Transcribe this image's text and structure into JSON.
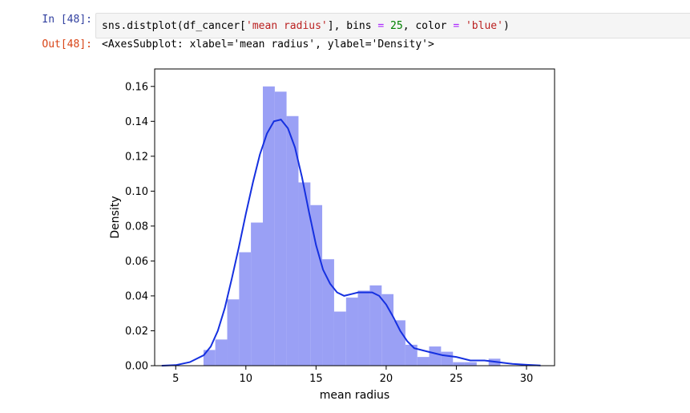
{
  "cell": {
    "in_prompt": "In [48]:",
    "out_prompt": "Out[48]:",
    "code": {
      "fn": "sns.distplot(df_cancer[",
      "arg_str": "'mean radius'",
      "sep1": "], bins ",
      "eq1": "=",
      "sp1": " ",
      "bins": "25",
      "sep2": ", color ",
      "eq2": "=",
      "sp2": " ",
      "color_str": "'blue'",
      "close": ")"
    },
    "output_text": "<AxesSubplot: xlabel='mean radius', ylabel='Density'>"
  },
  "colors": {
    "bar_fill": "#9aa0f5",
    "kde_line": "#1530e0",
    "axes": "#000000"
  },
  "chart_data": {
    "type": "bar",
    "title": "",
    "xlabel": "mean radius",
    "ylabel": "Density",
    "xlim": [
      3.5,
      32.0
    ],
    "ylim": [
      0,
      0.17
    ],
    "xticks": [
      5,
      10,
      15,
      20,
      25,
      30
    ],
    "yticks": [
      0.0,
      0.02,
      0.04,
      0.06,
      0.08,
      0.1,
      0.12,
      0.14,
      0.16
    ],
    "bins": [
      {
        "x0": 6.98,
        "x1": 7.82,
        "y": 0.009
      },
      {
        "x0": 7.82,
        "x1": 8.67,
        "y": 0.015
      },
      {
        "x0": 8.67,
        "x1": 9.52,
        "y": 0.038
      },
      {
        "x0": 9.52,
        "x1": 10.36,
        "y": 0.065
      },
      {
        "x0": 10.36,
        "x1": 11.21,
        "y": 0.082
      },
      {
        "x0": 11.21,
        "x1": 12.06,
        "y": 0.16
      },
      {
        "x0": 12.06,
        "x1": 12.9,
        "y": 0.157
      },
      {
        "x0": 12.9,
        "x1": 13.75,
        "y": 0.143
      },
      {
        "x0": 13.75,
        "x1": 14.6,
        "y": 0.105
      },
      {
        "x0": 14.6,
        "x1": 15.44,
        "y": 0.092
      },
      {
        "x0": 15.44,
        "x1": 16.29,
        "y": 0.061
      },
      {
        "x0": 16.29,
        "x1": 17.14,
        "y": 0.031
      },
      {
        "x0": 17.14,
        "x1": 17.98,
        "y": 0.039
      },
      {
        "x0": 17.98,
        "x1": 18.83,
        "y": 0.043
      },
      {
        "x0": 18.83,
        "x1": 19.68,
        "y": 0.046
      },
      {
        "x0": 19.68,
        "x1": 20.52,
        "y": 0.041
      },
      {
        "x0": 20.52,
        "x1": 21.37,
        "y": 0.026
      },
      {
        "x0": 21.37,
        "x1": 22.22,
        "y": 0.012
      },
      {
        "x0": 22.22,
        "x1": 23.06,
        "y": 0.005
      },
      {
        "x0": 23.06,
        "x1": 23.91,
        "y": 0.011
      },
      {
        "x0": 23.91,
        "x1": 24.76,
        "y": 0.008
      },
      {
        "x0": 24.76,
        "x1": 25.6,
        "y": 0.002
      },
      {
        "x0": 25.6,
        "x1": 26.45,
        "y": 0.002
      },
      {
        "x0": 26.45,
        "x1": 27.3,
        "y": 0.0
      },
      {
        "x0": 27.3,
        "x1": 28.14,
        "y": 0.004
      }
    ],
    "kde": {
      "x": [
        4,
        5,
        6,
        7,
        7.5,
        8,
        8.5,
        9,
        9.5,
        10,
        10.5,
        11,
        11.5,
        12,
        12.5,
        13,
        13.5,
        14,
        14.5,
        15,
        15.5,
        16,
        16.5,
        17,
        17.5,
        18,
        18.5,
        19,
        19.5,
        20,
        20.5,
        21,
        21.5,
        22,
        23,
        24,
        25,
        26,
        27,
        28,
        29,
        30,
        31
      ],
      "y": [
        0.0,
        0.0003,
        0.002,
        0.006,
        0.011,
        0.02,
        0.033,
        0.05,
        0.068,
        0.087,
        0.105,
        0.121,
        0.133,
        0.14,
        0.141,
        0.136,
        0.125,
        0.108,
        0.088,
        0.069,
        0.055,
        0.047,
        0.042,
        0.04,
        0.041,
        0.042,
        0.042,
        0.042,
        0.04,
        0.035,
        0.028,
        0.02,
        0.014,
        0.01,
        0.008,
        0.006,
        0.005,
        0.003,
        0.003,
        0.002,
        0.001,
        0.0005,
        0.0001
      ]
    },
    "grid": false,
    "legend": "none"
  }
}
